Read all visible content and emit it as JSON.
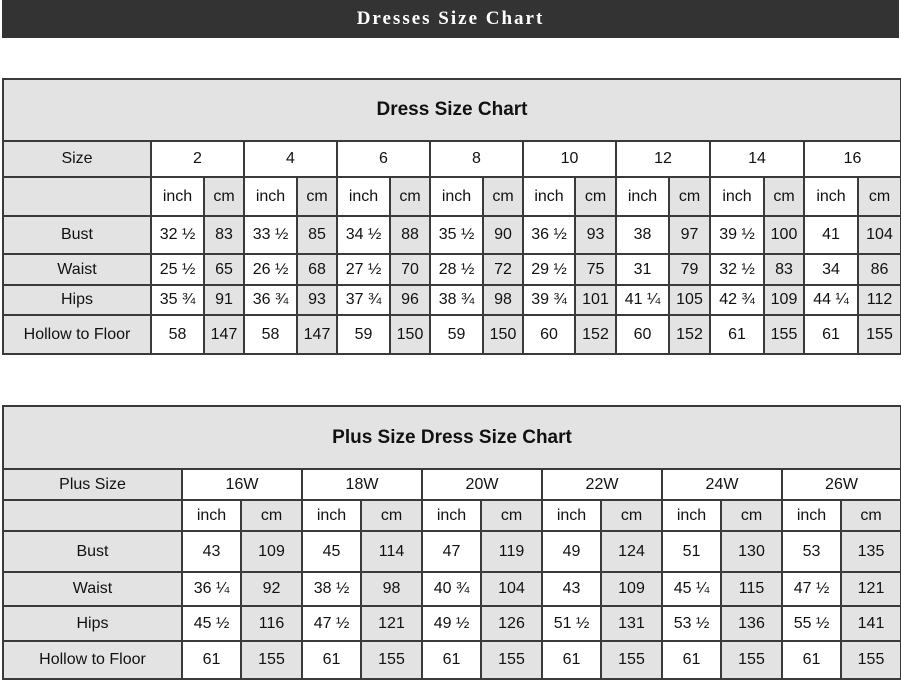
{
  "banner": {
    "title": "Dresses Size Chart"
  },
  "colors": {
    "banner_bg": "#333333",
    "header_gray": "#e3e3e3",
    "border": "#3a3a3a"
  },
  "dress_chart": {
    "title": "Dress Size Chart",
    "size_label": "Size",
    "unit_labels": {
      "inch": "inch",
      "cm": "cm"
    },
    "sizes": [
      "2",
      "4",
      "6",
      "8",
      "10",
      "12",
      "14",
      "16"
    ],
    "rows": [
      {
        "label": "Bust",
        "values": [
          [
            "32 ½",
            "83"
          ],
          [
            "33 ½",
            "85"
          ],
          [
            "34 ½",
            "88"
          ],
          [
            "35 ½",
            "90"
          ],
          [
            "36 ½",
            "93"
          ],
          [
            "38",
            "97"
          ],
          [
            "39 ½",
            "100"
          ],
          [
            "41",
            "104"
          ]
        ]
      },
      {
        "label": "Waist",
        "values": [
          [
            "25 ½",
            "65"
          ],
          [
            "26 ½",
            "68"
          ],
          [
            "27 ½",
            "70"
          ],
          [
            "28 ½",
            "72"
          ],
          [
            "29 ½",
            "75"
          ],
          [
            "31",
            "79"
          ],
          [
            "32 ½",
            "83"
          ],
          [
            "34",
            "86"
          ]
        ]
      },
      {
        "label": "Hips",
        "values": [
          [
            "35 ¾",
            "91"
          ],
          [
            "36 ¾",
            "93"
          ],
          [
            "37 ¾",
            "96"
          ],
          [
            "38 ¾",
            "98"
          ],
          [
            "39 ¾",
            "101"
          ],
          [
            "41 ¼",
            "105"
          ],
          [
            "42 ¾",
            "109"
          ],
          [
            "44 ¼",
            "112"
          ]
        ]
      },
      {
        "label": "Hollow to Floor",
        "values": [
          [
            "58",
            "147"
          ],
          [
            "58",
            "147"
          ],
          [
            "59",
            "150"
          ],
          [
            "59",
            "150"
          ],
          [
            "60",
            "152"
          ],
          [
            "60",
            "152"
          ],
          [
            "61",
            "155"
          ],
          [
            "61",
            "155"
          ]
        ]
      }
    ]
  },
  "plus_chart": {
    "title": "Plus Size Dress Size Chart",
    "size_label": "Plus Size",
    "unit_labels": {
      "inch": "inch",
      "cm": "cm"
    },
    "sizes": [
      "16W",
      "18W",
      "20W",
      "22W",
      "24W",
      "26W"
    ],
    "rows": [
      {
        "label": "Bust",
        "values": [
          [
            "43",
            "109"
          ],
          [
            "45",
            "114"
          ],
          [
            "47",
            "119"
          ],
          [
            "49",
            "124"
          ],
          [
            "51",
            "130"
          ],
          [
            "53",
            "135"
          ]
        ]
      },
      {
        "label": "Waist",
        "values": [
          [
            "36 ¼",
            "92"
          ],
          [
            "38 ½",
            "98"
          ],
          [
            "40 ¾",
            "104"
          ],
          [
            "43",
            "109"
          ],
          [
            "45 ¼",
            "115"
          ],
          [
            "47 ½",
            "121"
          ]
        ]
      },
      {
        "label": "Hips",
        "values": [
          [
            "45 ½",
            "116"
          ],
          [
            "47 ½",
            "121"
          ],
          [
            "49 ½",
            "126"
          ],
          [
            "51 ½",
            "131"
          ],
          [
            "53 ½",
            "136"
          ],
          [
            "55 ½",
            "141"
          ]
        ]
      },
      {
        "label": "Hollow to Floor",
        "values": [
          [
            "61",
            "155"
          ],
          [
            "61",
            "155"
          ],
          [
            "61",
            "155"
          ],
          [
            "61",
            "155"
          ],
          [
            "61",
            "155"
          ],
          [
            "61",
            "155"
          ]
        ]
      }
    ]
  }
}
